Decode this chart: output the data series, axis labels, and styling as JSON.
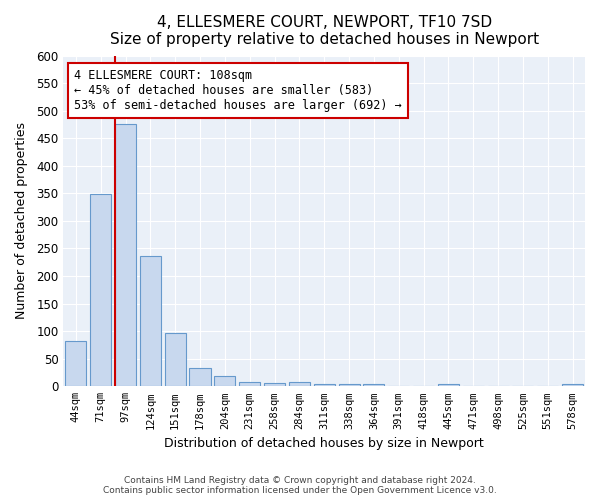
{
  "title": "4, ELLESMERE COURT, NEWPORT, TF10 7SD",
  "subtitle": "Size of property relative to detached houses in Newport",
  "xlabel": "Distribution of detached houses by size in Newport",
  "ylabel": "Number of detached properties",
  "bar_labels": [
    "44sqm",
    "71sqm",
    "97sqm",
    "124sqm",
    "151sqm",
    "178sqm",
    "204sqm",
    "231sqm",
    "258sqm",
    "284sqm",
    "311sqm",
    "338sqm",
    "364sqm",
    "391sqm",
    "418sqm",
    "445sqm",
    "471sqm",
    "498sqm",
    "525sqm",
    "551sqm",
    "578sqm"
  ],
  "bar_values": [
    83,
    349,
    476,
    236,
    97,
    34,
    18,
    8,
    6,
    7,
    5,
    4,
    4,
    0,
    0,
    4,
    0,
    0,
    0,
    0,
    4
  ],
  "bar_color": "#c8d8ee",
  "bar_edgecolor": "#6699cc",
  "vline_color": "#cc0000",
  "vline_x_index": 2,
  "annotation_title": "4 ELLESMERE COURT: 108sqm",
  "annotation_line1": "← 45% of detached houses are smaller (583)",
  "annotation_line2": "53% of semi-detached houses are larger (692) →",
  "annotation_box_facecolor": "#ffffff",
  "annotation_box_edgecolor": "#cc0000",
  "ylim": [
    0,
    600
  ],
  "yticks": [
    0,
    50,
    100,
    150,
    200,
    250,
    300,
    350,
    400,
    450,
    500,
    550,
    600
  ],
  "footer_line1": "Contains HM Land Registry data © Crown copyright and database right 2024.",
  "footer_line2": "Contains public sector information licensed under the Open Government Licence v3.0.",
  "bg_color": "#ffffff",
  "plot_bg_color": "#eaf0f8",
  "grid_color": "#ffffff"
}
